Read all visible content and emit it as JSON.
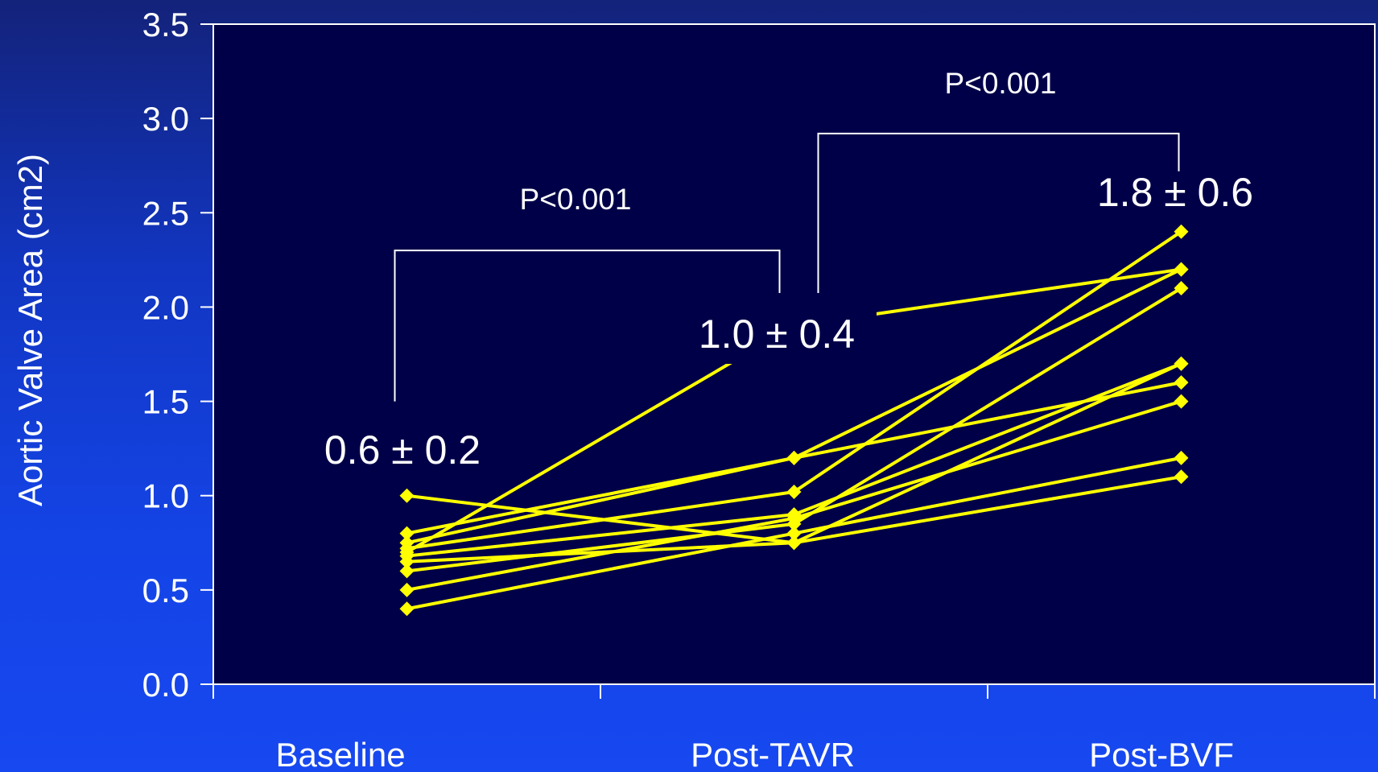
{
  "chart_data": {
    "type": "line",
    "ylabel": "Aortic Valve Area (cm2)",
    "xlabel": "",
    "categories": [
      "Baseline",
      "Post-TAVR",
      "Post-BVF"
    ],
    "ylim": [
      0,
      3.5
    ],
    "yticks": [
      "0.0",
      "0.5",
      "1.0",
      "1.5",
      "2.0",
      "2.5",
      "3.0",
      "3.5"
    ],
    "grid": false,
    "legend": "none",
    "colors": {
      "series": "#ffff00",
      "plot_background": "#000048",
      "axis": "#ffffff",
      "text": "#ffffff"
    },
    "series": [
      {
        "values": [
          1.0,
          0.75,
          1.7
        ]
      },
      {
        "values": [
          0.8,
          1.2,
          1.6
        ]
      },
      {
        "values": [
          0.75,
          1.2,
          2.2
        ]
      },
      {
        "values": [
          0.72,
          1.02,
          2.4
        ]
      },
      {
        "values": [
          0.7,
          1.9,
          2.2
        ]
      },
      {
        "values": [
          0.68,
          0.9,
          1.7
        ]
      },
      {
        "values": [
          0.65,
          0.75,
          1.1
        ]
      },
      {
        "values": [
          0.6,
          0.85,
          2.1
        ]
      },
      {
        "values": [
          0.5,
          0.88,
          1.5
        ]
      },
      {
        "values": [
          0.4,
          0.8,
          1.2
        ]
      }
    ],
    "annotations": {
      "baseline_mean": "0.6 ± 0.2",
      "post_tavr_mean": "1.0 ± 0.4",
      "post_bvf_mean": "1.8 ± 0.6",
      "p_value_baseline_vs_tavr": "P<0.001",
      "p_value_tavr_vs_bvf": "P<0.001"
    }
  }
}
